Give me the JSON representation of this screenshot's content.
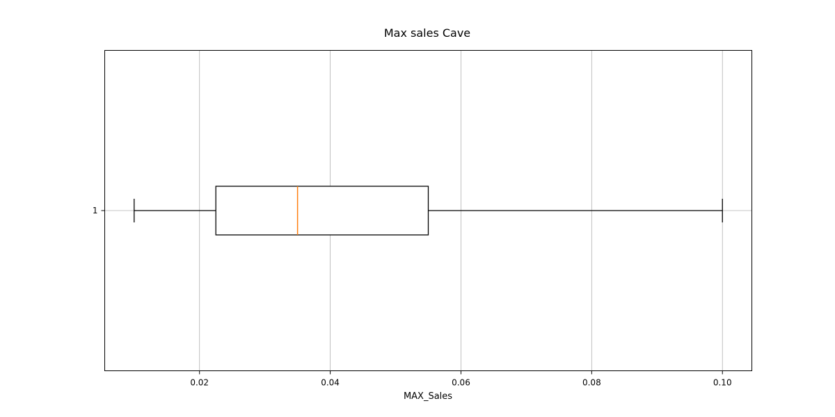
{
  "chart_data": {
    "type": "boxplot",
    "orientation": "horizontal",
    "title": "Max sales Cave",
    "xlabel": "MAX_Sales",
    "ylabel": "",
    "xlim": [
      0.0055,
      0.1045
    ],
    "x_ticks": [
      0.02,
      0.04,
      0.06,
      0.08,
      0.1
    ],
    "x_tick_labels": [
      "0.02",
      "0.04",
      "0.06",
      "0.08",
      "0.10"
    ],
    "y_ticks": [
      1
    ],
    "y_tick_labels": [
      "1"
    ],
    "grid": true,
    "box": {
      "category": "1",
      "whisker_low": 0.01,
      "q1": 0.0225,
      "median": 0.035,
      "q3": 0.055,
      "whisker_high": 0.1
    },
    "colors": {
      "box": "#000000",
      "median": "#ff7f0e",
      "grid": "#b0b0b0"
    }
  }
}
